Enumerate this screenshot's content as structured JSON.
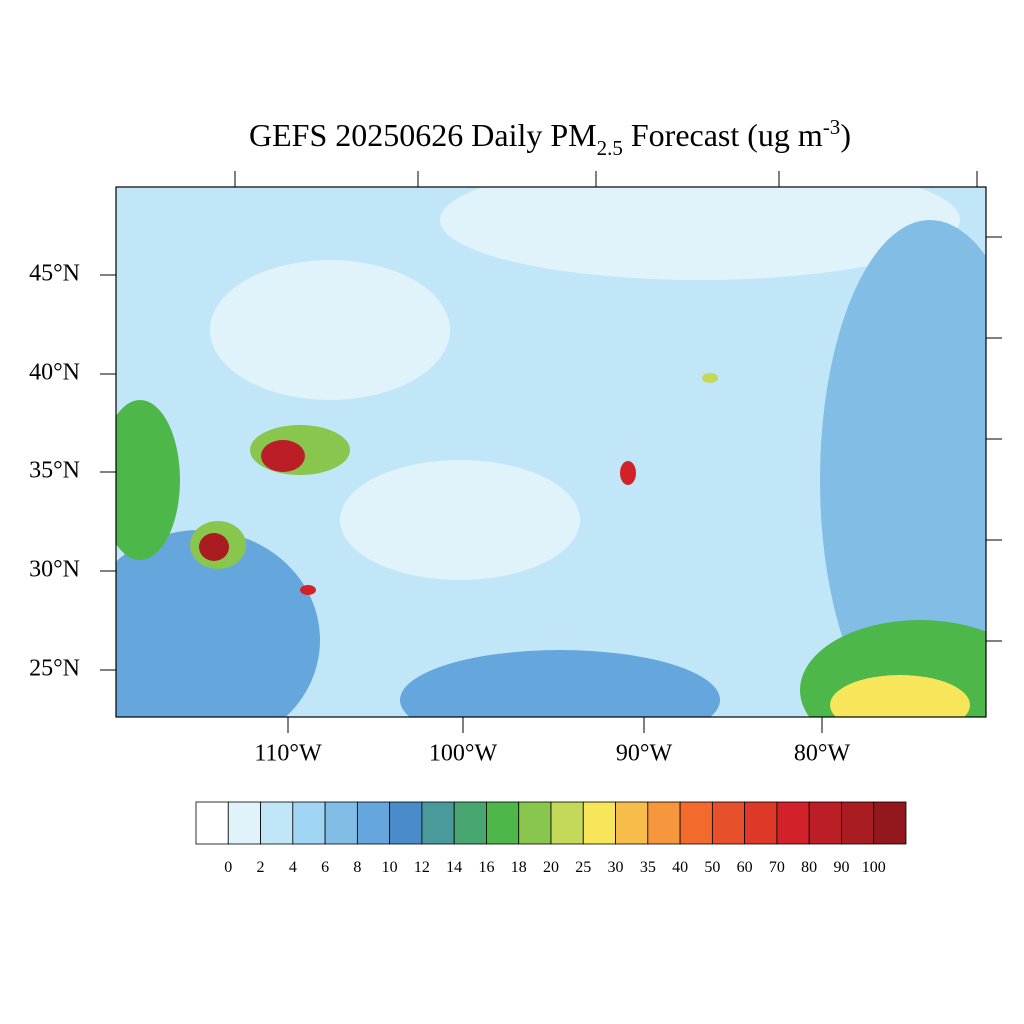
{
  "title": {
    "main": "GEFS 20250626 Daily PM",
    "sub": "2.5",
    "rest": " Forecast (ug m",
    "sup": "-3",
    "end": ")"
  },
  "map": {
    "lat_labels": [
      "45°N",
      "40°N",
      "35°N",
      "30°N",
      "25°N"
    ],
    "lon_labels": [
      "110°W",
      "100°W",
      "90°W",
      "80°W"
    ]
  },
  "colorbar": {
    "ticks": [
      0,
      2,
      4,
      6,
      8,
      10,
      12,
      14,
      16,
      18,
      20,
      25,
      30,
      35,
      40,
      50,
      60,
      70,
      80,
      90,
      100
    ],
    "colors": [
      "#ffffff",
      "#e0f3fb",
      "#c0e6f7",
      "#a0d6f3",
      "#82bde6",
      "#65a7dc",
      "#4a8cca",
      "#4a9a9c",
      "#48a770",
      "#4db749",
      "#88c64d",
      "#c4d85a",
      "#f7e55a",
      "#f7bd4a",
      "#f6973d",
      "#f26b2d",
      "#e84f2b",
      "#dd3828",
      "#d22129",
      "#bb1e27",
      "#a81c22",
      "#92181d"
    ]
  }
}
